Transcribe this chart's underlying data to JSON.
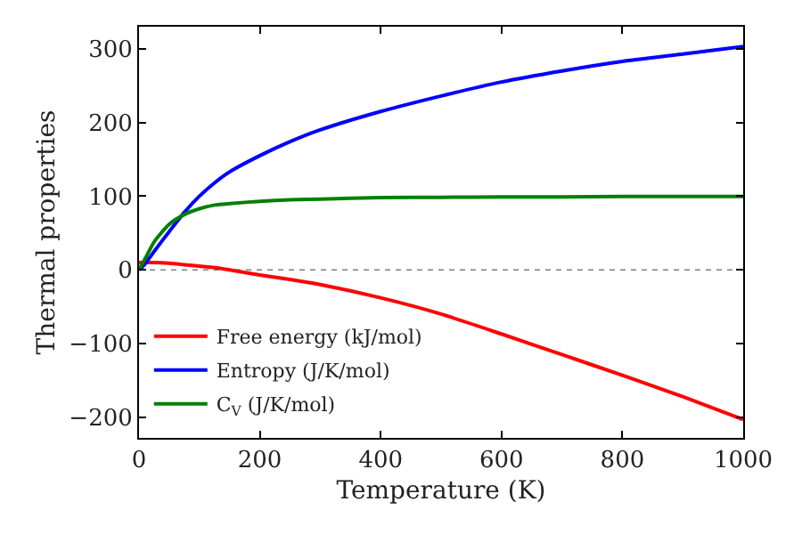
{
  "chart_data": {
    "type": "line",
    "xlabel": "Temperature (K)",
    "ylabel": "Thermal properties",
    "x": [
      0,
      10,
      25,
      50,
      75,
      100,
      125,
      150,
      200,
      250,
      300,
      400,
      500,
      600,
      700,
      800,
      900,
      1000
    ],
    "series": [
      {
        "name": "Free energy (kJ/mol)",
        "color": "#ff0000",
        "values": [
          10,
          10,
          10,
          9,
          7,
          5,
          3,
          0,
          -7,
          -13,
          -20,
          -38,
          -60,
          -87,
          -115,
          -143,
          -172,
          -203
        ]
      },
      {
        "name": "Entropy (J/K/mol)",
        "color": "#0000ff",
        "values": [
          0,
          8,
          25,
          52,
          78,
          100,
          118,
          133,
          155,
          174,
          190,
          215,
          236,
          255,
          270,
          283,
          293,
          303
        ]
      },
      {
        "name": "C$_{V}$ (J/K/mol)",
        "color": "#008000",
        "values": [
          0,
          15,
          38,
          62,
          75,
          83,
          88,
          90,
          93,
          95,
          96,
          98,
          98.5,
          99,
          99,
          99.5,
          99.5,
          99.5
        ]
      }
    ],
    "xlim": [
      0,
      1000
    ],
    "xticks": [
      0,
      200,
      400,
      600,
      800,
      1000
    ],
    "ylim": [
      -228,
      330
    ],
    "yticks": [
      -200,
      -100,
      0,
      100,
      200,
      300
    ],
    "ref_lines": [
      {
        "axis": "y",
        "value": 0,
        "color": "#808080",
        "line_style": "dotted"
      }
    ],
    "grid": false,
    "legend": "bottom left",
    "marker": "none",
    "line_style": "solid"
  }
}
